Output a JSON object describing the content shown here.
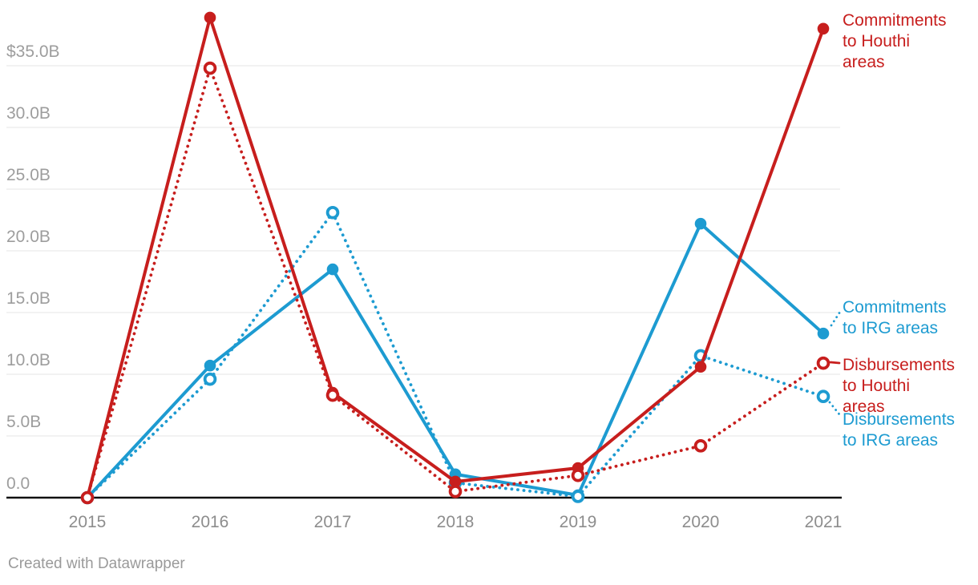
{
  "chart_data": {
    "type": "line",
    "title": "",
    "xlabel": "",
    "ylabel": "",
    "x": [
      2015,
      2016,
      2017,
      2018,
      2019,
      2020,
      2021
    ],
    "x_ticks": [
      "2015",
      "2016",
      "2017",
      "2018",
      "2019",
      "2020",
      "2021"
    ],
    "y_ticks": [
      {
        "label": "$35.0B",
        "value": 35
      },
      {
        "label": "30.0B",
        "value": 30
      },
      {
        "label": "25.0B",
        "value": 25
      },
      {
        "label": "20.0B",
        "value": 20
      },
      {
        "label": "15.0B",
        "value": 15
      },
      {
        "label": "10.0B",
        "value": 10
      },
      {
        "label": "5.0B",
        "value": 5
      },
      {
        "label": "0.0",
        "value": 0
      }
    ],
    "ylim": [
      0,
      40
    ],
    "grid": "horizontal",
    "legend_position": "direct-labels-right",
    "series": [
      {
        "name": "Commitments to Houthi areas",
        "slug": "commitments-houthi",
        "label_lines": "Commitments\nto Houthi\nareas",
        "color": "#c71e1d",
        "line_style": "solid",
        "marker": "filled",
        "values": [
          0,
          38.9,
          8.5,
          1.3,
          2.4,
          10.6,
          38.0
        ]
      },
      {
        "name": "Commitments to IRG areas",
        "slug": "commitments-irg",
        "label_lines": "Commitments\nto IRG areas",
        "color": "#1d9bd1",
        "line_style": "solid",
        "marker": "filled",
        "values": [
          0,
          10.7,
          18.5,
          1.9,
          0.2,
          22.2,
          13.3
        ]
      },
      {
        "name": "Disbursements to Houthi areas",
        "slug": "disbursements-houthi",
        "label_lines": "Disbursements\nto Houthi\nareas",
        "color": "#c71e1d",
        "line_style": "dotted",
        "marker": "open",
        "values": [
          0,
          34.8,
          8.3,
          0.5,
          1.8,
          4.2,
          10.9
        ]
      },
      {
        "name": "Disbursements to IRG areas",
        "slug": "disbursements-irg",
        "label_lines": "Disbursements\nto IRG areas",
        "color": "#1d9bd1",
        "line_style": "dotted",
        "marker": "open",
        "values": [
          0,
          9.6,
          23.1,
          1.2,
          0.1,
          11.5,
          8.2
        ]
      }
    ]
  },
  "colors": {
    "houthi_red": "#c71e1d",
    "irg_blue": "#1d9bd1",
    "gridline": "#e9e9e9",
    "axis_line": "#111111",
    "y_tick_label": "#9d9d9d",
    "x_tick_label": "#8d8d8d",
    "credit_text": "#9a9a9a"
  },
  "footer": {
    "credit": "Created with Datawrapper"
  }
}
